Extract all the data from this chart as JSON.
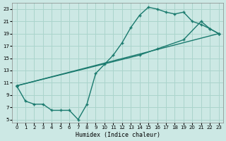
{
  "background_color": "#cce8e4",
  "grid_color": "#aad4cc",
  "line_color": "#1a7a6e",
  "xlim": [
    -0.5,
    23.5
  ],
  "ylim": [
    4.5,
    24.0
  ],
  "xticks": [
    0,
    1,
    2,
    3,
    4,
    5,
    6,
    7,
    8,
    9,
    10,
    11,
    12,
    13,
    14,
    15,
    16,
    17,
    18,
    19,
    20,
    21,
    22,
    23
  ],
  "yticks": [
    5,
    7,
    9,
    11,
    13,
    15,
    17,
    19,
    21,
    23
  ],
  "xlabel": "Humidex (Indice chaleur)",
  "curve1_x": [
    0,
    1,
    2,
    3,
    4,
    5,
    6,
    7,
    8,
    9,
    10,
    11,
    12,
    13,
    14,
    15,
    16,
    17,
    18,
    19,
    20,
    21,
    22,
    23
  ],
  "curve1_y": [
    10.5,
    8.0,
    7.5,
    7.5,
    6.5,
    6.5,
    6.5,
    5.0,
    7.5,
    12.5,
    14.0,
    15.5,
    17.5,
    20.0,
    22.0,
    23.3,
    23.0,
    22.5,
    22.2,
    22.5,
    21.0,
    20.5,
    19.8,
    19.0
  ],
  "curve2_x": [
    0,
    23
  ],
  "curve2_y": [
    10.5,
    19.0
  ],
  "curve3_x": [
    0,
    14,
    16,
    19,
    21,
    22,
    23
  ],
  "curve3_y": [
    10.5,
    15.5,
    16.5,
    18.0,
    21.0,
    19.8,
    19.0
  ]
}
